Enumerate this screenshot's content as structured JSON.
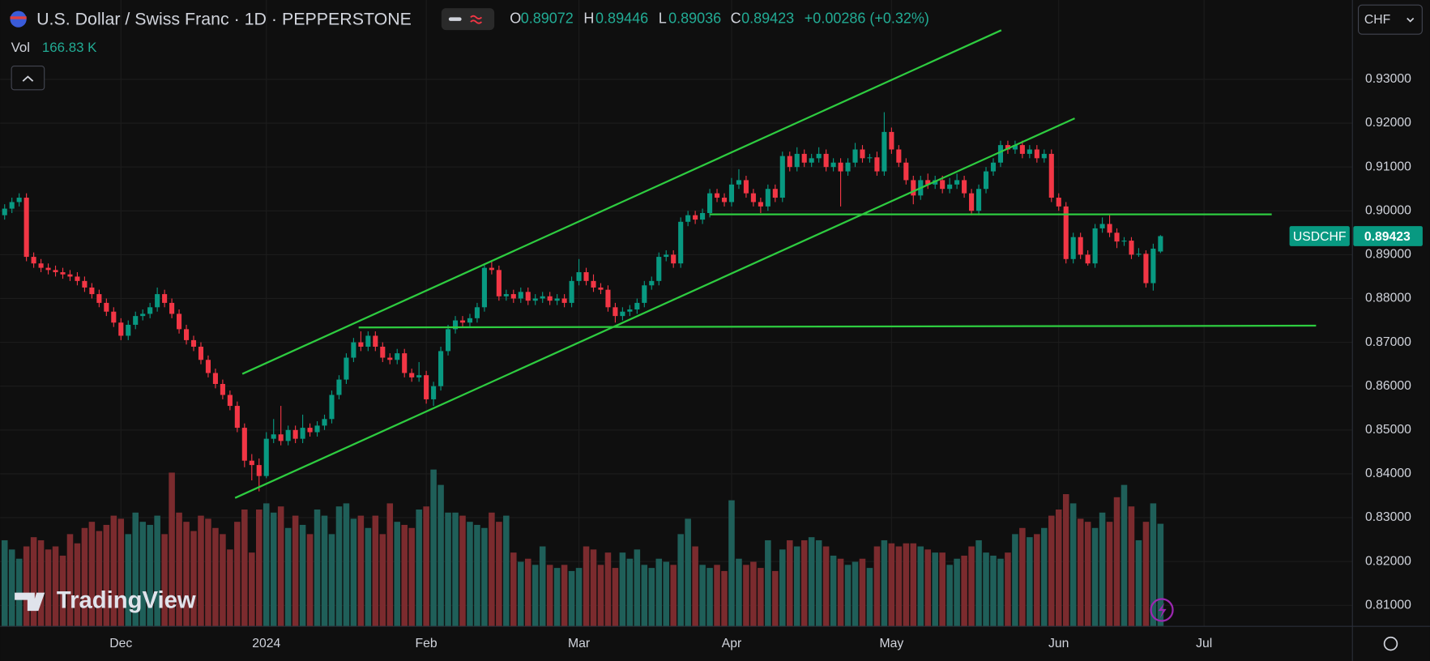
{
  "chart_data": {
    "type": "candlestick",
    "title": "U.S. Dollar / Swiss Franc · 1D · PEPPERSTONE",
    "symbol": "USDCHF",
    "currency": "CHF",
    "ohlc_labels": [
      "O",
      "H",
      "L",
      "C"
    ],
    "change": "+0.00286 (+0.32%)",
    "volume_label": "Vol",
    "volume_text": "166.83 K",
    "watermark": "TradingView",
    "up_color": "#089981",
    "down_color": "#f23645",
    "volume_up_color": "#1f5f59",
    "volume_down_color": "#7b2b2e",
    "drawing_color": "#2ecc40",
    "grid": true,
    "xlim": [
      -0.627,
      185.4
    ],
    "xticks": [
      {
        "value": 16,
        "label": "Dec"
      },
      {
        "value": 36,
        "label": "2024"
      },
      {
        "value": 58,
        "label": "Feb"
      },
      {
        "value": 79,
        "label": "Mar"
      },
      {
        "value": 100,
        "label": "Apr"
      },
      {
        "value": 122,
        "label": "May"
      },
      {
        "value": 145,
        "label": "Jun"
      },
      {
        "value": 165,
        "label": "Jul"
      }
    ],
    "ylim": [
      0.8052,
      0.9481
    ],
    "yticks": [
      {
        "value": 0.93,
        "label": "0.93000"
      },
      {
        "value": 0.92,
        "label": "0.92000"
      },
      {
        "value": 0.91,
        "label": "0.91000"
      },
      {
        "value": 0.9,
        "label": "0.90000"
      },
      {
        "value": 0.89,
        "label": "0.89000"
      },
      {
        "value": 0.88,
        "label": "0.88000"
      },
      {
        "value": 0.87,
        "label": "0.87000"
      },
      {
        "value": 0.86,
        "label": "0.86000"
      },
      {
        "value": 0.85,
        "label": "0.85000"
      },
      {
        "value": 0.84,
        "label": "0.84000"
      },
      {
        "value": 0.83,
        "label": "0.83000"
      },
      {
        "value": 0.82,
        "label": "0.82000"
      },
      {
        "value": 0.81,
        "label": "0.81000"
      }
    ],
    "candles": [
      [
        0.899,
        0.9015,
        0.898,
        0.9005
      ],
      [
        0.9005,
        0.903,
        0.8995,
        0.902
      ],
      [
        0.902,
        0.904,
        0.901,
        0.903
      ],
      [
        0.903,
        0.904,
        0.8885,
        0.8895
      ],
      [
        0.8895,
        0.8905,
        0.887,
        0.888
      ],
      [
        0.888,
        0.889,
        0.886,
        0.887
      ],
      [
        0.887,
        0.888,
        0.8855,
        0.8865
      ],
      [
        0.8865,
        0.8875,
        0.885,
        0.886
      ],
      [
        0.886,
        0.887,
        0.8845,
        0.8855
      ],
      [
        0.8855,
        0.8865,
        0.884,
        0.885
      ],
      [
        0.885,
        0.886,
        0.883,
        0.884
      ],
      [
        0.884,
        0.885,
        0.8815,
        0.8825
      ],
      [
        0.8825,
        0.8835,
        0.88,
        0.881
      ],
      [
        0.881,
        0.882,
        0.878,
        0.879
      ],
      [
        0.879,
        0.88,
        0.876,
        0.877
      ],
      [
        0.877,
        0.878,
        0.8735,
        0.8745
      ],
      [
        0.8745,
        0.8755,
        0.8705,
        0.8715
      ],
      [
        0.8715,
        0.875,
        0.8705,
        0.874
      ],
      [
        0.874,
        0.877,
        0.873,
        0.876
      ],
      [
        0.876,
        0.8775,
        0.875,
        0.8765
      ],
      [
        0.8765,
        0.879,
        0.8755,
        0.878
      ],
      [
        0.878,
        0.8825,
        0.877,
        0.881
      ],
      [
        0.881,
        0.882,
        0.878,
        0.879
      ],
      [
        0.879,
        0.88,
        0.8755,
        0.8765
      ],
      [
        0.8765,
        0.8775,
        0.872,
        0.873
      ],
      [
        0.873,
        0.874,
        0.8695,
        0.8705
      ],
      [
        0.8705,
        0.8715,
        0.868,
        0.869
      ],
      [
        0.869,
        0.87,
        0.865,
        0.866
      ],
      [
        0.866,
        0.867,
        0.862,
        0.863
      ],
      [
        0.863,
        0.864,
        0.8595,
        0.8605
      ],
      [
        0.8605,
        0.8615,
        0.857,
        0.858
      ],
      [
        0.858,
        0.859,
        0.8545,
        0.8555
      ],
      [
        0.8555,
        0.8565,
        0.8495,
        0.8505
      ],
      [
        0.8505,
        0.8515,
        0.8415,
        0.843
      ],
      [
        0.843,
        0.8445,
        0.8385,
        0.842
      ],
      [
        0.842,
        0.8435,
        0.836,
        0.8395
      ],
      [
        0.8395,
        0.8495,
        0.839,
        0.848
      ],
      [
        0.848,
        0.8525,
        0.847,
        0.849
      ],
      [
        0.849,
        0.8555,
        0.8465,
        0.8475
      ],
      [
        0.8475,
        0.851,
        0.8465,
        0.85
      ],
      [
        0.85,
        0.851,
        0.847,
        0.848
      ],
      [
        0.848,
        0.8535,
        0.847,
        0.8505
      ],
      [
        0.8505,
        0.8515,
        0.8485,
        0.8495
      ],
      [
        0.8495,
        0.852,
        0.8485,
        0.851
      ],
      [
        0.851,
        0.8535,
        0.85,
        0.8525
      ],
      [
        0.8525,
        0.859,
        0.8515,
        0.858
      ],
      [
        0.858,
        0.8625,
        0.857,
        0.8615
      ],
      [
        0.8615,
        0.8675,
        0.8605,
        0.8665
      ],
      [
        0.8665,
        0.871,
        0.8655,
        0.87
      ],
      [
        0.87,
        0.8725,
        0.868,
        0.869
      ],
      [
        0.869,
        0.8725,
        0.868,
        0.8715
      ],
      [
        0.8715,
        0.8725,
        0.868,
        0.869
      ],
      [
        0.869,
        0.87,
        0.8655,
        0.8665
      ],
      [
        0.8665,
        0.8675,
        0.865,
        0.866
      ],
      [
        0.866,
        0.8685,
        0.865,
        0.8675
      ],
      [
        0.8675,
        0.8685,
        0.862,
        0.863
      ],
      [
        0.863,
        0.864,
        0.861,
        0.862
      ],
      [
        0.862,
        0.8655,
        0.861,
        0.8625
      ],
      [
        0.8625,
        0.8635,
        0.856,
        0.857
      ],
      [
        0.857,
        0.861,
        0.8555,
        0.86
      ],
      [
        0.86,
        0.869,
        0.859,
        0.868
      ],
      [
        0.868,
        0.874,
        0.867,
        0.873
      ],
      [
        0.873,
        0.876,
        0.872,
        0.875
      ],
      [
        0.875,
        0.876,
        0.8735,
        0.8745
      ],
      [
        0.8745,
        0.8765,
        0.8735,
        0.8755
      ],
      [
        0.8755,
        0.879,
        0.8745,
        0.878
      ],
      [
        0.878,
        0.888,
        0.877,
        0.887
      ],
      [
        0.887,
        0.8885,
        0.8855,
        0.8865
      ],
      [
        0.8865,
        0.8875,
        0.8795,
        0.8805
      ],
      [
        0.8805,
        0.882,
        0.8795,
        0.881
      ],
      [
        0.881,
        0.882,
        0.879,
        0.88
      ],
      [
        0.88,
        0.8825,
        0.879,
        0.8815
      ],
      [
        0.8815,
        0.8825,
        0.8785,
        0.8795
      ],
      [
        0.8795,
        0.881,
        0.8785,
        0.88
      ],
      [
        0.88,
        0.8815,
        0.879,
        0.8805
      ],
      [
        0.8805,
        0.8815,
        0.8785,
        0.8795
      ],
      [
        0.8795,
        0.881,
        0.8785,
        0.88
      ],
      [
        0.88,
        0.881,
        0.878,
        0.879
      ],
      [
        0.879,
        0.885,
        0.878,
        0.884
      ],
      [
        0.884,
        0.889,
        0.883,
        0.886
      ],
      [
        0.886,
        0.887,
        0.883,
        0.884
      ],
      [
        0.884,
        0.8855,
        0.8815,
        0.8825
      ],
      [
        0.8825,
        0.8835,
        0.881,
        0.882
      ],
      [
        0.882,
        0.883,
        0.877,
        0.878
      ],
      [
        0.878,
        0.879,
        0.8745,
        0.876
      ],
      [
        0.876,
        0.878,
        0.875,
        0.877
      ],
      [
        0.877,
        0.8785,
        0.876,
        0.8775
      ],
      [
        0.8775,
        0.88,
        0.8765,
        0.879
      ],
      [
        0.879,
        0.884,
        0.878,
        0.883
      ],
      [
        0.883,
        0.885,
        0.882,
        0.884
      ],
      [
        0.884,
        0.8905,
        0.883,
        0.8895
      ],
      [
        0.8895,
        0.891,
        0.8885,
        0.89
      ],
      [
        0.89,
        0.891,
        0.887,
        0.888
      ],
      [
        0.888,
        0.8985,
        0.887,
        0.8975
      ],
      [
        0.8975,
        0.9,
        0.8965,
        0.899
      ],
      [
        0.899,
        0.9,
        0.897,
        0.898
      ],
      [
        0.898,
        0.9005,
        0.897,
        0.8995
      ],
      [
        0.8995,
        0.905,
        0.8985,
        0.904
      ],
      [
        0.904,
        0.905,
        0.902,
        0.903
      ],
      [
        0.903,
        0.904,
        0.901,
        0.902
      ],
      [
        0.902,
        0.9075,
        0.901,
        0.906
      ],
      [
        0.906,
        0.9095,
        0.905,
        0.907
      ],
      [
        0.907,
        0.908,
        0.903,
        0.904
      ],
      [
        0.904,
        0.905,
        0.901,
        0.902
      ],
      [
        0.902,
        0.903,
        0.8995,
        0.901
      ],
      [
        0.901,
        0.906,
        0.9,
        0.905
      ],
      [
        0.905,
        0.906,
        0.902,
        0.903
      ],
      [
        0.903,
        0.9135,
        0.902,
        0.9125
      ],
      [
        0.9125,
        0.9135,
        0.909,
        0.91
      ],
      [
        0.91,
        0.9145,
        0.909,
        0.913
      ],
      [
        0.913,
        0.914,
        0.91,
        0.911
      ],
      [
        0.911,
        0.913,
        0.91,
        0.912
      ],
      [
        0.912,
        0.9145,
        0.911,
        0.913
      ],
      [
        0.913,
        0.914,
        0.909,
        0.91
      ],
      [
        0.91,
        0.912,
        0.909,
        0.911
      ],
      [
        0.911,
        0.912,
        0.901,
        0.909
      ],
      [
        0.909,
        0.912,
        0.908,
        0.911
      ],
      [
        0.911,
        0.9155,
        0.91,
        0.914
      ],
      [
        0.914,
        0.915,
        0.911,
        0.912
      ],
      [
        0.912,
        0.913,
        0.911,
        0.9122
      ],
      [
        0.9122,
        0.9135,
        0.908,
        0.909
      ],
      [
        0.909,
        0.9225,
        0.908,
        0.918
      ],
      [
        0.918,
        0.919,
        0.913,
        0.914
      ],
      [
        0.914,
        0.915,
        0.91,
        0.911
      ],
      [
        0.911,
        0.912,
        0.906,
        0.907
      ],
      [
        0.907,
        0.908,
        0.9015,
        0.9035
      ],
      [
        0.9035,
        0.908,
        0.9025,
        0.907
      ],
      [
        0.907,
        0.9085,
        0.905,
        0.906
      ],
      [
        0.906,
        0.908,
        0.905,
        0.907
      ],
      [
        0.907,
        0.908,
        0.904,
        0.905
      ],
      [
        0.905,
        0.9075,
        0.904,
        0.906
      ],
      [
        0.906,
        0.9085,
        0.905,
        0.907
      ],
      [
        0.907,
        0.908,
        0.903,
        0.904
      ],
      [
        0.904,
        0.905,
        0.899,
        0.9
      ],
      [
        0.9,
        0.906,
        0.899,
        0.905
      ],
      [
        0.905,
        0.91,
        0.904,
        0.909
      ],
      [
        0.909,
        0.912,
        0.908,
        0.911
      ],
      [
        0.911,
        0.916,
        0.91,
        0.915
      ],
      [
        0.915,
        0.916,
        0.913,
        0.914
      ],
      [
        0.914,
        0.916,
        0.913,
        0.915
      ],
      [
        0.915,
        0.916,
        0.912,
        0.913
      ],
      [
        0.913,
        0.915,
        0.912,
        0.914
      ],
      [
        0.914,
        0.915,
        0.911,
        0.912
      ],
      [
        0.912,
        0.914,
        0.911,
        0.913
      ],
      [
        0.913,
        0.914,
        0.902,
        0.903
      ],
      [
        0.903,
        0.904,
        0.9,
        0.901
      ],
      [
        0.901,
        0.902,
        0.888,
        0.889
      ],
      [
        0.889,
        0.895,
        0.888,
        0.894
      ],
      [
        0.894,
        0.895,
        0.889,
        0.89
      ],
      [
        0.89,
        0.891,
        0.8875,
        0.888
      ],
      [
        0.888,
        0.897,
        0.887,
        0.896
      ],
      [
        0.896,
        0.8985,
        0.895,
        0.897
      ],
      [
        0.897,
        0.899,
        0.894,
        0.895
      ],
      [
        0.895,
        0.896,
        0.8915,
        0.893
      ],
      [
        0.893,
        0.894,
        0.892,
        0.8932
      ],
      [
        0.8932,
        0.894,
        0.889,
        0.89
      ],
      [
        0.89,
        0.8915,
        0.8895,
        0.8902
      ],
      [
        0.8902,
        0.891,
        0.8825,
        0.8835
      ],
      [
        0.8835,
        0.8925,
        0.8818,
        0.89137
      ],
      [
        0.89072,
        0.89446,
        0.89036,
        0.89423
      ]
    ],
    "volume": [
      140,
      125,
      110,
      130,
      145,
      140,
      125,
      130,
      115,
      150,
      135,
      160,
      170,
      155,
      165,
      180,
      175,
      150,
      185,
      170,
      165,
      180,
      150,
      250,
      185,
      170,
      155,
      180,
      175,
      160,
      150,
      125,
      170,
      190,
      120,
      190,
      200,
      185,
      195,
      160,
      180,
      165,
      150,
      190,
      180,
      150,
      195,
      200,
      175,
      180,
      160,
      180,
      150,
      200,
      170,
      165,
      160,
      190,
      195,
      255,
      230,
      185,
      185,
      180,
      170,
      165,
      160,
      185,
      170,
      180,
      120,
      105,
      110,
      100,
      130,
      100,
      95,
      100,
      90,
      95,
      130,
      125,
      100,
      120,
      95,
      120,
      110,
      125,
      100,
      95,
      110,
      105,
      100,
      150,
      175,
      130,
      100,
      95,
      100,
      90,
      205,
      110,
      100,
      105,
      95,
      140,
      90,
      125,
      140,
      130,
      140,
      145,
      140,
      130,
      115,
      110,
      100,
      105,
      110,
      95,
      130,
      140,
      135,
      130,
      135,
      135,
      130,
      125,
      120,
      120,
      100,
      110,
      115,
      130,
      140,
      120,
      115,
      110,
      120,
      150,
      160,
      145,
      150,
      160,
      180,
      190,
      215,
      200,
      175,
      170,
      160,
      185,
      170,
      210,
      230,
      195,
      140,
      170,
      200,
      166.83
    ],
    "drawings": [
      [
        32.7,
        0.8628,
        137.1,
        0.9412
      ],
      [
        31.7,
        0.8345,
        147.2,
        0.9211
      ],
      [
        97,
        0.8992,
        174.3,
        0.8992
      ],
      [
        48.7,
        0.8734,
        180.4,
        0.8738
      ]
    ]
  }
}
